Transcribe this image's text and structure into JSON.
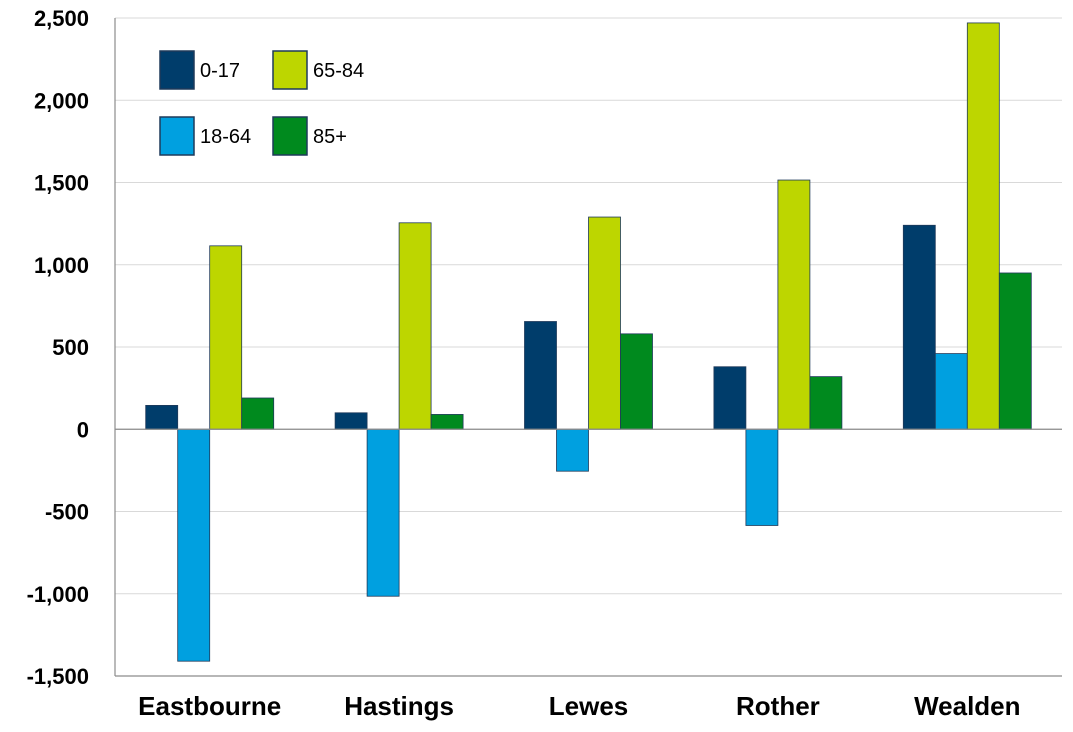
{
  "chart_data": {
    "type": "bar",
    "categories": [
      "Eastbourne",
      "Hastings",
      "Lewes",
      "Rother",
      "Wealden"
    ],
    "series": [
      {
        "name": "0-17",
        "color": "#003d6b",
        "values": [
          145,
          100,
          655,
          380,
          1240
        ]
      },
      {
        "name": "18-64",
        "color": "#00a0e0",
        "values": [
          -1410,
          -1015,
          -255,
          -585,
          460
        ]
      },
      {
        "name": "65-84",
        "color": "#bdd600",
        "values": [
          1115,
          1255,
          1290,
          1515,
          2470
        ]
      },
      {
        "name": "85+",
        "color": "#008a1e",
        "values": [
          190,
          90,
          580,
          320,
          950
        ]
      }
    ],
    "ylim": [
      -1500,
      2500
    ],
    "yticks": [
      2500,
      2000,
      1500,
      1000,
      500,
      0,
      -500,
      -1000,
      -1500
    ],
    "ytick_labels": [
      "2,500",
      "2,000",
      "1,500",
      "1,000",
      "500",
      "0",
      "-500",
      "-1,000",
      "-1,500"
    ],
    "grid": true,
    "legend_position": "top-left",
    "legend_order": [
      0,
      2,
      1,
      3
    ],
    "title": "",
    "xlabel": "",
    "ylabel": ""
  }
}
